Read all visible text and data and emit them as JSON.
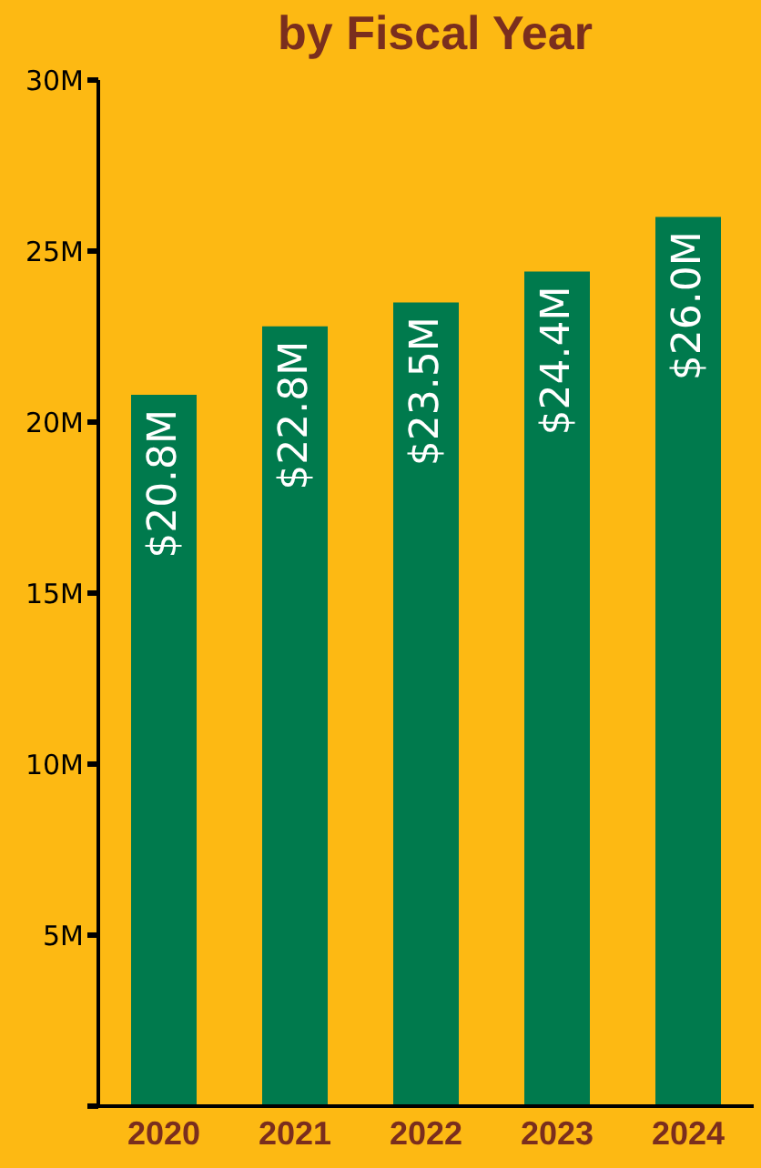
{
  "chart_data": {
    "type": "bar",
    "title": "by Fiscal Year",
    "categories": [
      "2020",
      "2021",
      "2022",
      "2023",
      "2024"
    ],
    "values": [
      20.8,
      22.8,
      23.5,
      24.4,
      26.0
    ],
    "value_labels": [
      "$20.8M",
      "$22.8M",
      "$23.5M",
      "$24.4M",
      "$26.0M"
    ],
    "color": "#007a4d",
    "ylim": [
      0,
      30
    ],
    "yticks": [
      {
        "value": 0,
        "label": null
      },
      {
        "value": 5,
        "label": "5M"
      },
      {
        "value": 10,
        "label": "10M"
      },
      {
        "value": 15,
        "label": "15M"
      },
      {
        "value": 20,
        "label": "20M"
      },
      {
        "value": 25,
        "label": "25M"
      },
      {
        "value": 30,
        "label": "30M"
      }
    ],
    "grid": false,
    "legend": false
  }
}
